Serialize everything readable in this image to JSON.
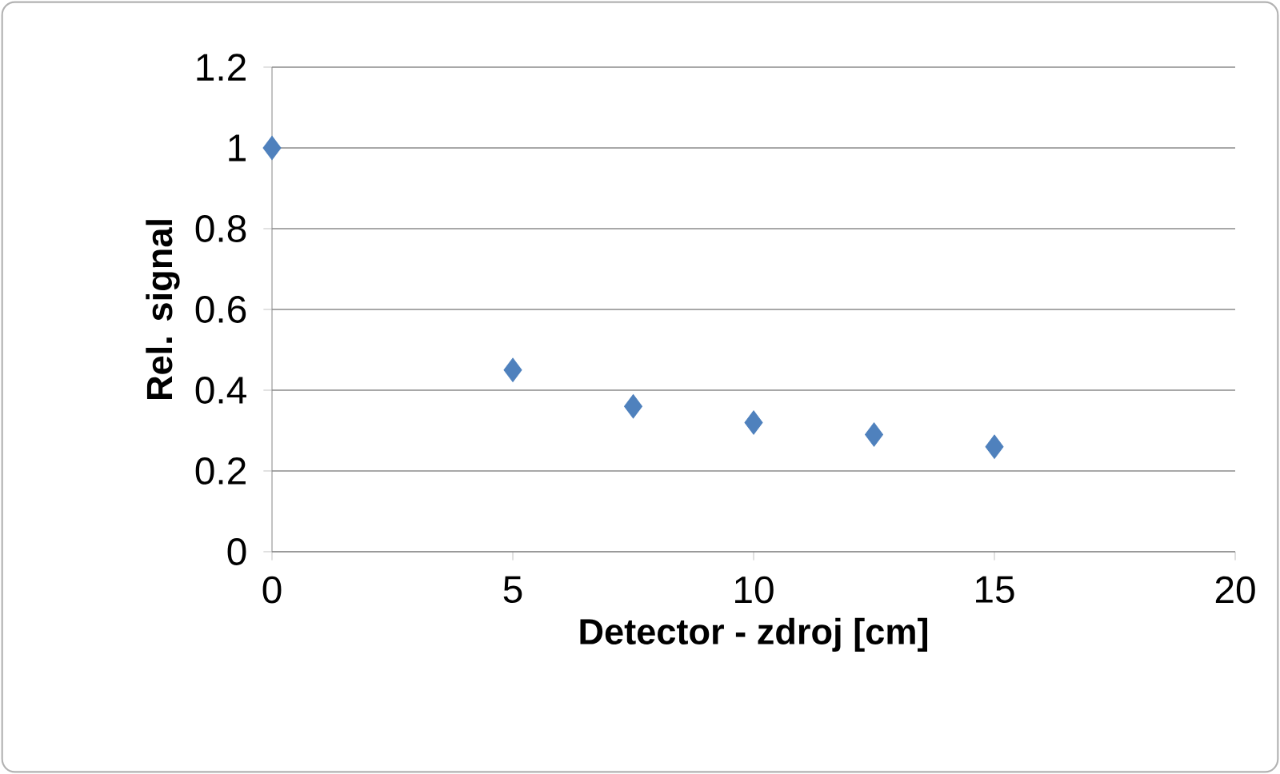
{
  "chart_data": {
    "type": "scatter",
    "xlabel": "Detector - zdroj [cm]",
    "ylabel": "Rel. signal",
    "x": [
      0,
      5,
      7.5,
      10,
      12.5,
      15
    ],
    "series": [
      {
        "color": "#4f81bd",
        "values": [
          1,
          0.45,
          0.36,
          0.32,
          0.29,
          0.26
        ]
      }
    ],
    "xlim": [
      0,
      20
    ],
    "xticks": [
      0,
      5,
      10,
      15,
      20
    ],
    "ylim": [
      0,
      1.2
    ],
    "yticks": [
      0,
      0.2,
      0.4,
      0.6,
      0.8,
      1,
      1.2
    ],
    "grid": "y",
    "marker": "diamond",
    "legend": false
  }
}
